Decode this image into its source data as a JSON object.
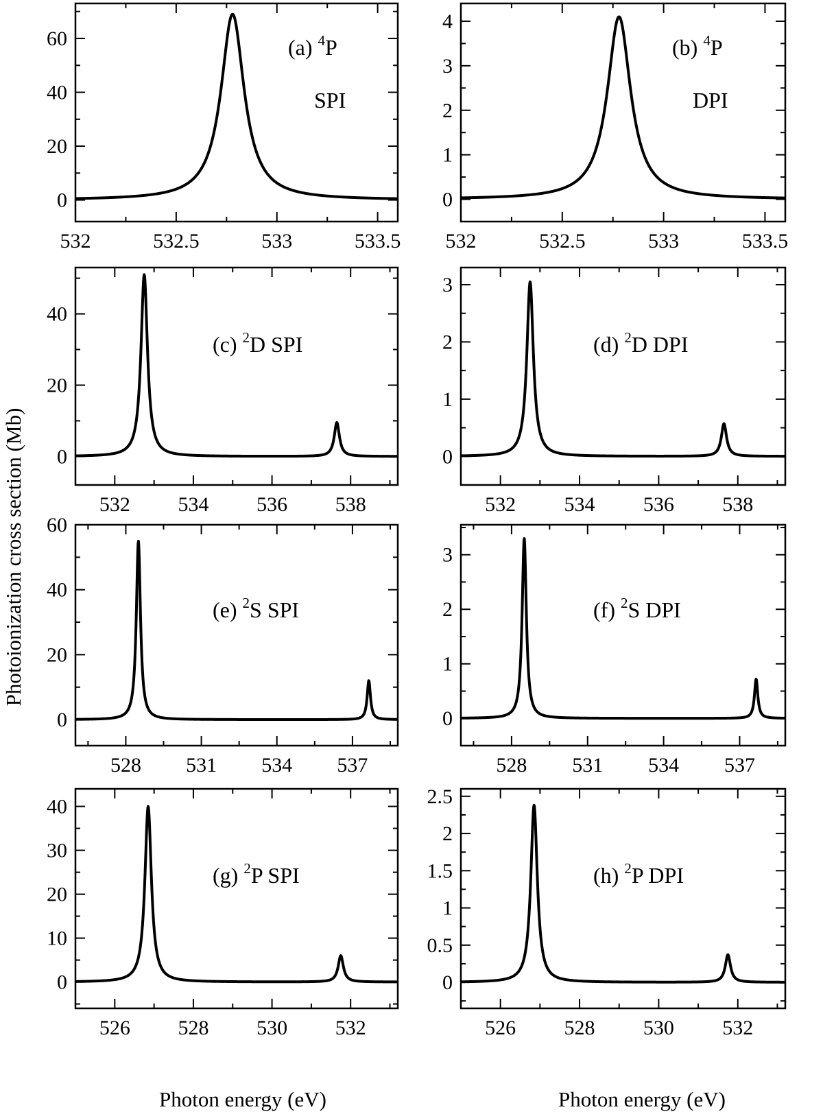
{
  "figure": {
    "ylabel": "Photoionization cross section (Mb)",
    "xlabel": "Photon energy (eV)"
  },
  "chart_data": [
    {
      "id": "a",
      "type": "line",
      "annotation": {
        "prefix": "(a) ",
        "sup": "4",
        "term": "P",
        "line2": "SPI"
      },
      "xlim": [
        532,
        533.6
      ],
      "ylim": [
        -8,
        73
      ],
      "xticks": [
        532,
        532.5,
        533,
        533.5
      ],
      "xtick_labels": [
        "532",
        "532.5",
        "533",
        "533.5"
      ],
      "yticks": [
        0,
        20,
        40,
        60
      ],
      "ytick_labels": [
        "0",
        "20",
        "40",
        "60"
      ],
      "series": [
        {
          "peaks": [
            {
              "x": 532.78,
              "height": 69,
              "hwhm": 0.07
            }
          ]
        }
      ]
    },
    {
      "id": "b",
      "type": "line",
      "annotation": {
        "prefix": "(b) ",
        "sup": "4",
        "term": "P",
        "line2": "DPI"
      },
      "xlim": [
        532,
        533.6
      ],
      "ylim": [
        -0.5,
        4.4
      ],
      "xticks": [
        532,
        532.5,
        533,
        533.5
      ],
      "xtick_labels": [
        "532",
        "532.5",
        "533",
        "533.5"
      ],
      "yticks": [
        0,
        1,
        2,
        3,
        4
      ],
      "ytick_labels": [
        "0",
        "1",
        "2",
        "3",
        "4"
      ],
      "series": [
        {
          "peaks": [
            {
              "x": 532.78,
              "height": 4.1,
              "hwhm": 0.07
            }
          ]
        }
      ]
    },
    {
      "id": "c",
      "type": "line",
      "annotation": {
        "prefix": "(c) ",
        "sup": "2",
        "term": "D SPI"
      },
      "xlim": [
        531,
        539.2
      ],
      "ylim": [
        -8,
        53
      ],
      "xticks": [
        532,
        534,
        536,
        538
      ],
      "xtick_labels": [
        "532",
        "534",
        "536",
        "538"
      ],
      "yticks": [
        0,
        20,
        40
      ],
      "ytick_labels": [
        "0",
        "20",
        "40"
      ],
      "series": [
        {
          "peaks": [
            {
              "x": 532.75,
              "height": 51,
              "hwhm": 0.1
            },
            {
              "x": 537.65,
              "height": 9.5,
              "hwhm": 0.08
            }
          ]
        }
      ]
    },
    {
      "id": "d",
      "type": "line",
      "annotation": {
        "prefix": "(d) ",
        "sup": "2",
        "term": "D DPI"
      },
      "xlim": [
        531,
        539.2
      ],
      "ylim": [
        -0.5,
        3.3
      ],
      "xticks": [
        532,
        534,
        536,
        538
      ],
      "xtick_labels": [
        "532",
        "534",
        "536",
        "538"
      ],
      "yticks": [
        0,
        1,
        2,
        3
      ],
      "ytick_labels": [
        "0",
        "1",
        "2",
        "3"
      ],
      "series": [
        {
          "peaks": [
            {
              "x": 532.75,
              "height": 3.05,
              "hwhm": 0.1
            },
            {
              "x": 537.65,
              "height": 0.57,
              "hwhm": 0.08
            }
          ]
        }
      ]
    },
    {
      "id": "e",
      "type": "line",
      "annotation": {
        "prefix": "(e) ",
        "sup": "2",
        "term": "S SPI"
      },
      "xlim": [
        526,
        538.8
      ],
      "ylim": [
        -8,
        60
      ],
      "xticks": [
        528,
        531,
        534,
        537
      ],
      "xtick_labels": [
        "528",
        "531",
        "534",
        "537"
      ],
      "yticks": [
        0,
        20,
        40,
        60
      ],
      "ytick_labels": [
        "0",
        "20",
        "40",
        "60"
      ],
      "series": [
        {
          "peaks": [
            {
              "x": 528.5,
              "height": 55,
              "hwhm": 0.1
            },
            {
              "x": 537.65,
              "height": 12,
              "hwhm": 0.08
            }
          ]
        }
      ]
    },
    {
      "id": "f",
      "type": "line",
      "annotation": {
        "prefix": "(f) ",
        "sup": "2",
        "term": "S DPI"
      },
      "xlim": [
        526,
        538.8
      ],
      "ylim": [
        -0.5,
        3.55
      ],
      "xticks": [
        528,
        531,
        534,
        537
      ],
      "xtick_labels": [
        "528",
        "531",
        "534",
        "537"
      ],
      "yticks": [
        0,
        1,
        2,
        3
      ],
      "ytick_labels": [
        "0",
        "1",
        "2",
        "3"
      ],
      "series": [
        {
          "peaks": [
            {
              "x": 528.5,
              "height": 3.3,
              "hwhm": 0.1
            },
            {
              "x": 537.65,
              "height": 0.72,
              "hwhm": 0.08
            }
          ]
        }
      ]
    },
    {
      "id": "g",
      "type": "line",
      "annotation": {
        "prefix": "(g) ",
        "sup": "2",
        "term": "P SPI"
      },
      "xlim": [
        525,
        533.2
      ],
      "ylim": [
        -6,
        44
      ],
      "xticks": [
        526,
        528,
        530,
        532
      ],
      "xtick_labels": [
        "526",
        "528",
        "530",
        "532"
      ],
      "yticks": [
        0,
        10,
        20,
        30,
        40
      ],
      "ytick_labels": [
        "0",
        "10",
        "20",
        "30",
        "40"
      ],
      "series": [
        {
          "peaks": [
            {
              "x": 526.85,
              "height": 40,
              "hwhm": 0.1
            },
            {
              "x": 531.75,
              "height": 6,
              "hwhm": 0.08
            }
          ]
        }
      ]
    },
    {
      "id": "h",
      "type": "line",
      "annotation": {
        "prefix": "(h) ",
        "sup": "2",
        "term": "P DPI"
      },
      "xlim": [
        525,
        533.2
      ],
      "ylim": [
        -0.35,
        2.6
      ],
      "xticks": [
        526,
        528,
        530,
        532
      ],
      "xtick_labels": [
        "526",
        "528",
        "530",
        "532"
      ],
      "yticks": [
        0,
        0.5,
        1,
        1.5,
        2,
        2.5
      ],
      "ytick_labels": [
        "0",
        "0.5",
        "1",
        "1.5",
        "2",
        "2.5"
      ],
      "series": [
        {
          "peaks": [
            {
              "x": 526.85,
              "height": 2.38,
              "hwhm": 0.1
            },
            {
              "x": 531.75,
              "height": 0.37,
              "hwhm": 0.08
            }
          ]
        }
      ]
    }
  ]
}
